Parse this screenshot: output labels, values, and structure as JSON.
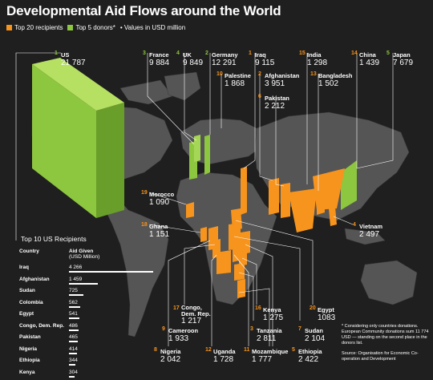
{
  "title": "Developmental Aid Flows around the World",
  "legend": {
    "recipients": "Top 20 recipients",
    "donors": "Top 5 donors*",
    "values": "• Values in USD million"
  },
  "colors": {
    "recipient": "#f7941d",
    "donor": "#8dc63f",
    "background": "#1f1f1f",
    "land": "#555555"
  },
  "donors": [
    {
      "rank": "1",
      "name": "US",
      "value": "21 787"
    },
    {
      "rank": "2",
      "name": "Germany",
      "value": "12 291"
    },
    {
      "rank": "3",
      "name": "France",
      "value": "9 884"
    },
    {
      "rank": "4",
      "name": "UK",
      "value": "9 849"
    },
    {
      "rank": "5",
      "name": "Japan",
      "value": "7 679"
    }
  ],
  "recipients": [
    {
      "rank": "1",
      "name": "Iraq",
      "value": "9 115"
    },
    {
      "rank": "2",
      "name": "Afghanistan",
      "value": "3 951"
    },
    {
      "rank": "3",
      "name": "Tanzania",
      "value": "2 811"
    },
    {
      "rank": "4",
      "name": "Vietnam",
      "value": "2 497"
    },
    {
      "rank": "5",
      "name": "Ethiopia",
      "value": "2 422"
    },
    {
      "rank": "6",
      "name": "Pakistan",
      "value": "2 212"
    },
    {
      "rank": "7",
      "name": "Sudan",
      "value": "2 104"
    },
    {
      "rank": "8",
      "name": "Nigeria",
      "value": "2 042"
    },
    {
      "rank": "9",
      "name": "Cameroon",
      "value": "1 933"
    },
    {
      "rank": "10",
      "name": "Palestine",
      "value": "1 868"
    },
    {
      "rank": "11",
      "name": "Mozambique",
      "value": "1 777"
    },
    {
      "rank": "12",
      "name": "Uganda",
      "value": "1 728"
    },
    {
      "rank": "13",
      "name": "Bangladesh",
      "value": "1 502"
    },
    {
      "rank": "14",
      "name": "China",
      "value": "1 439"
    },
    {
      "rank": "15",
      "name": "India",
      "value": "1 298"
    },
    {
      "rank": "16",
      "name": "Kenya",
      "value": "1 275"
    },
    {
      "rank": "17",
      "name": "Congo, Dem. Rep.",
      "value": "1 217"
    },
    {
      "rank": "18",
      "name": "Ghana",
      "value": "1 151"
    },
    {
      "rank": "19",
      "name": "Morocco",
      "value": "1 090"
    },
    {
      "rank": "20",
      "name": "Egypt",
      "value": "1083"
    }
  ],
  "us_table": {
    "title": "Top 10 US Recipients",
    "col_country": "Country",
    "col_aid": "Aid Given",
    "col_aid_unit": "(USD Million)",
    "rows": [
      {
        "country": "Iraq",
        "value": "4 266",
        "amount": 4266
      },
      {
        "country": "Afghanistan",
        "value": "1 459",
        "amount": 1459
      },
      {
        "country": "Sudan",
        "value": "725",
        "amount": 725
      },
      {
        "country": "Colombia",
        "value": "562",
        "amount": 562
      },
      {
        "country": "Egypt",
        "value": "541",
        "amount": 541
      },
      {
        "country": "Congo, Dem. Rep.",
        "value": "486",
        "amount": 486
      },
      {
        "country": "Pakistan",
        "value": "465",
        "amount": 465
      },
      {
        "country": "Nigeria",
        "value": "414",
        "amount": 414
      },
      {
        "country": "Ethiopia",
        "value": "344",
        "amount": 344
      },
      {
        "country": "Kenya",
        "value": "304",
        "amount": 304
      }
    ]
  },
  "notes": {
    "footnote": "* Considering only countries donations. European Community donations sum 11 774 USD — standing on the second place in the donors list.",
    "source": "Source: Organisation for Economic Co-operation and Development"
  }
}
